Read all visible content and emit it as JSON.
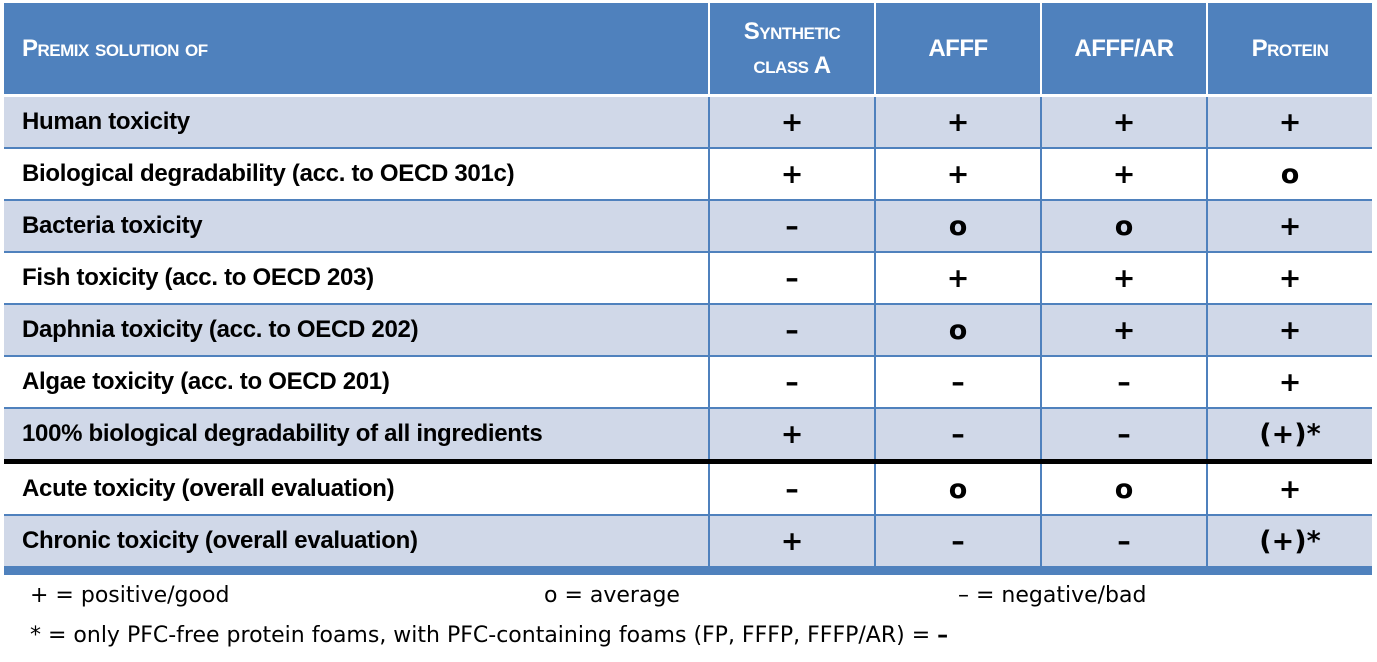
{
  "header": {
    "row_label": "Premix solution of",
    "columns": [
      "Synthetic class A",
      "AFFF",
      "AFFF/AR",
      "Protein"
    ]
  },
  "rows": [
    {
      "label": "Human toxicity",
      "values": [
        "+",
        "+",
        "+",
        "+"
      ]
    },
    {
      "label": "Biological degradability (acc. to OECD 301c)",
      "values": [
        "+",
        "+",
        "+",
        "o"
      ]
    },
    {
      "label": "Bacteria toxicity",
      "values": [
        "–",
        "o",
        "o",
        "+"
      ]
    },
    {
      "label": "Fish toxicity (acc. to OECD 203)",
      "values": [
        "–",
        "+",
        "+",
        "+"
      ]
    },
    {
      "label": "Daphnia toxicity (acc. to OECD 202)",
      "values": [
        "–",
        "o",
        "+",
        "+"
      ]
    },
    {
      "label": "Algae toxicity (acc. to OECD 201)",
      "values": [
        "–",
        "–",
        "–",
        "+"
      ]
    },
    {
      "label": "100% biological degradability of all ingredients",
      "values": [
        "+",
        "–",
        "–",
        "(+)*"
      ]
    },
    {
      "label": "Acute toxicity (overall evaluation)",
      "values": [
        "–",
        "o",
        "o",
        "+"
      ]
    },
    {
      "label": "Chronic toxicity (overall evaluation)",
      "values": [
        "+",
        "–",
        "–",
        "(+)*"
      ]
    }
  ],
  "legend": {
    "positive": "+ = positive/good",
    "average": "o = average",
    "negative": "– = negative/bad"
  },
  "footnote": {
    "text": "* = only PFC-free protein foams, with PFC-containing foams (FP, FFFP, FFFP/AR) = ",
    "symbol": "–"
  },
  "colors": {
    "header_bg": "#4f81bd",
    "shaded_row": "#d0d8e8",
    "plain_row": "#ffffff",
    "separator": "#000000"
  }
}
